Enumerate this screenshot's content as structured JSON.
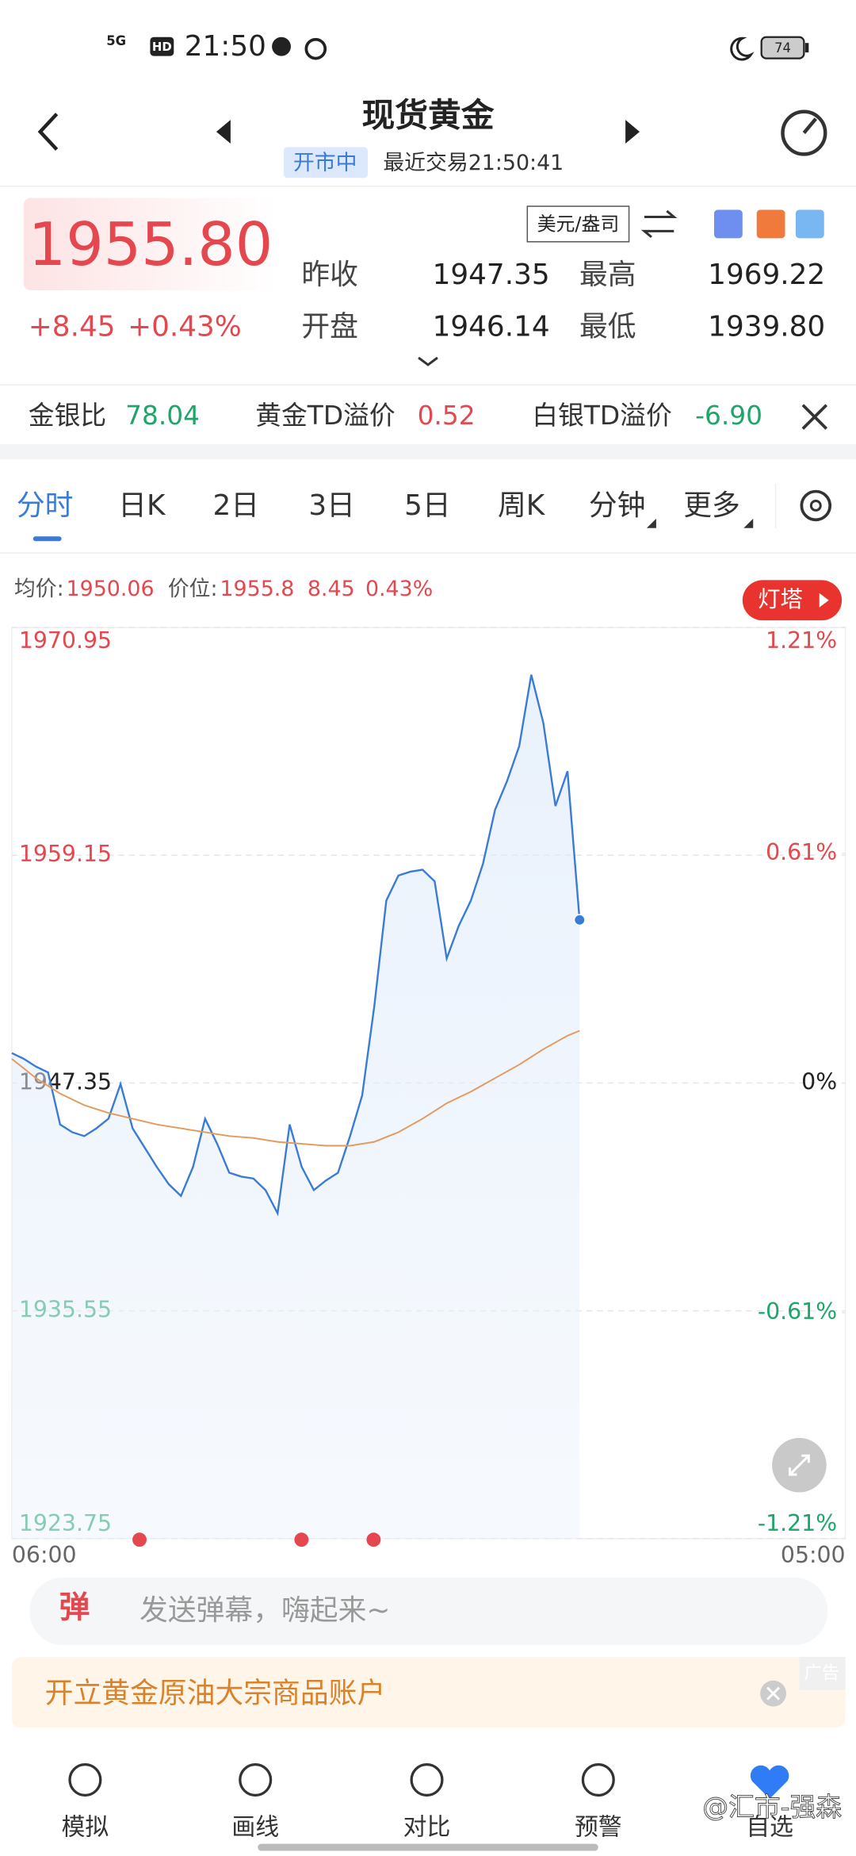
{
  "status_bar": {
    "network": "5G",
    "hd": "HD",
    "time": "21:50",
    "battery": "74"
  },
  "header": {
    "title": "现货黄金",
    "status": "开市中",
    "last_trade": "最近交易21:50:41"
  },
  "quote": {
    "price": "1955.80",
    "change": "+8.45",
    "change_pct": "+0.43%",
    "unit": "美元/盎司",
    "stats": [
      {
        "label": "昨收",
        "value": "1947.35"
      },
      {
        "label": "最高",
        "value": "1969.22"
      },
      {
        "label": "开盘",
        "value": "1946.14"
      },
      {
        "label": "最低",
        "value": "1939.80"
      }
    ]
  },
  "ticker": [
    {
      "label": "金银比",
      "value": "78.04"
    },
    {
      "label": "黄金TD溢价",
      "value": "0.52"
    },
    {
      "label": "白银TD溢价",
      "value": "-6.90"
    }
  ],
  "tabs": [
    "分时",
    "日K",
    "2日",
    "3日",
    "5日",
    "周K",
    "分钟",
    "更多"
  ],
  "chart_info": {
    "avg_label": "均价:",
    "avg_value": "1950.06",
    "price_label": "价位:",
    "price_value": "1955.8",
    "change": "8.45",
    "change_pct": "0.43%",
    "badge": "灯塔"
  },
  "chart_data": {
    "type": "line",
    "categories": [
      "06:00",
      null,
      null,
      null,
      null,
      null,
      null,
      null,
      null,
      null,
      null,
      null,
      null,
      null,
      null,
      null,
      null,
      null,
      null,
      null,
      null,
      null,
      null,
      null,
      null,
      null,
      null,
      null,
      null,
      null,
      null,
      null,
      null,
      null,
      null,
      null,
      null,
      null,
      null,
      null,
      null,
      null,
      null,
      null,
      null,
      null,
      null,
      null,
      null,
      null,
      null,
      null,
      null,
      null,
      null,
      null,
      null,
      null,
      null,
      null,
      null,
      null,
      null,
      null,
      null,
      null,
      null,
      null,
      null,
      "05:00"
    ],
    "series": [
      {
        "color": "#3a7bd5",
        "values": [
          1948.9,
          1948.6,
          1948.2,
          1947.9,
          1945.2,
          1944.8,
          1944.6,
          1945.0,
          1945.5,
          1947.3,
          1945.0,
          1944.0,
          1943.0,
          1942.1,
          1941.5,
          1943.0,
          1945.5,
          1944.2,
          1942.7,
          1942.5,
          1942.4,
          1941.8,
          1940.6,
          1945.2,
          1943.0,
          1941.8,
          1942.3,
          1942.7,
          1944.6,
          1946.7,
          1951.3,
          1956.8,
          1958.1,
          1958.3,
          1958.4,
          1957.8,
          1953.8,
          1955.5,
          1956.8,
          1958.7,
          1961.5,
          1963.0,
          1964.8,
          1968.5,
          1966.0,
          1961.7,
          1963.5,
          1955.8,
          null,
          null,
          null,
          null,
          null,
          null,
          null,
          null,
          null,
          null,
          null,
          null,
          null,
          null,
          null,
          null,
          null,
          null,
          null,
          null,
          null,
          null
        ]
      },
      {
        "color": "#e39a5a",
        "values": [
          1948.6,
          1948.1,
          1947.6,
          1947.2,
          1946.8,
          1946.5,
          1946.2,
          1946.0,
          1945.8,
          1945.65,
          1945.5,
          1945.35,
          1945.2,
          1945.1,
          1945.0,
          1944.9,
          1944.8,
          1944.7,
          1944.6,
          1944.55,
          1944.5,
          1944.4,
          1944.3,
          1944.25,
          1944.2,
          1944.15,
          1944.1,
          1944.1,
          1944.1,
          1944.2,
          1944.3,
          1944.55,
          1944.8,
          1945.15,
          1945.5,
          1945.9,
          1946.3,
          1946.6,
          1946.9,
          1947.25,
          1947.6,
          1947.95,
          1948.3,
          1948.7,
          1949.1,
          1949.45,
          1949.8,
          1950.06,
          null,
          null,
          null,
          null,
          null,
          null,
          null,
          null,
          null,
          null,
          null,
          null,
          null,
          null,
          null,
          null,
          null,
          null,
          null,
          null,
          null,
          null
        ]
      }
    ],
    "ylim": [
      1923.75,
      1970.95
    ],
    "yticks": [
      1970.95,
      1959.15,
      1947.35,
      1935.55,
      1923.75
    ],
    "y2lim": [
      -1.21,
      1.21
    ],
    "y2ticks": [
      {
        "value": 1.21,
        "label": "1.21%"
      },
      {
        "value": 0.61,
        "label": "0.61%"
      },
      {
        "value": 0,
        "label": "0%"
      },
      {
        "value": -0.61,
        "label": "-0.61%"
      },
      {
        "value": -1.21,
        "label": "-1.21%"
      }
    ],
    "grid": true
  },
  "danmaku": {
    "icon": "弹",
    "placeholder": "发送弹幕，嗨起来~"
  },
  "ad": {
    "text": "开立黄金原油大宗商品账户",
    "tag": "广告"
  },
  "bottom_nav": [
    "模拟",
    "画线",
    "对比",
    "预警",
    "自选"
  ],
  "watermark": "@汇市-强森"
}
